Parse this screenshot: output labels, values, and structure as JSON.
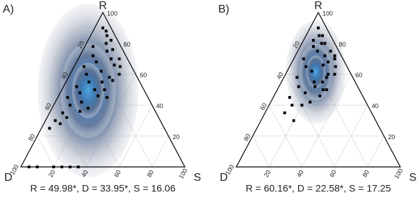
{
  "chart_data": [
    {
      "type": "ternary",
      "panel": "A)",
      "r_label": "R",
      "d_label": "D",
      "s_label": "S",
      "caption": "R = 49.98*, D = 33.95*, S = 16.06",
      "lim": [
        0,
        100
      ],
      "ticks": [
        20,
        40,
        60,
        80,
        100
      ],
      "grid": true,
      "color": "#000000",
      "r": [
        85,
        80,
        78,
        75,
        72,
        70,
        68,
        65,
        62,
        60,
        58,
        55,
        52,
        50,
        48,
        45,
        42,
        40,
        38,
        35,
        32,
        30,
        28,
        25,
        70,
        65,
        60,
        55,
        50,
        45,
        90,
        88,
        82,
        76,
        66,
        56,
        46,
        36,
        0,
        0,
        0,
        0,
        0,
        0
      ],
      "d": [
        5,
        8,
        17,
        10,
        20,
        10,
        20,
        29,
        20,
        30,
        17,
        31,
        40,
        30,
        40,
        49,
        42,
        50,
        40,
        57,
        56,
        64,
        62,
        70,
        5,
        7,
        10,
        23,
        24,
        25,
        5,
        4,
        4,
        6,
        10,
        16,
        30,
        46,
        95,
        90,
        80,
        70,
        65,
        75
      ],
      "s": [
        10,
        12,
        5,
        15,
        8,
        20,
        12,
        6,
        18,
        10,
        25,
        14,
        8,
        20,
        12,
        6,
        16,
        10,
        22,
        8,
        12,
        6,
        10,
        5,
        25,
        28,
        30,
        22,
        26,
        30,
        5,
        8,
        14,
        18,
        24,
        28,
        24,
        18,
        5,
        10,
        20,
        30,
        35,
        25
      ]
    },
    {
      "type": "ternary",
      "panel": "B)",
      "r_label": "R",
      "d_label": "D",
      "s_label": "S",
      "caption": "R = 60.16*, D = 22.58*, S = 17.25",
      "lim": [
        0,
        100
      ],
      "ticks": [
        20,
        40,
        60,
        80,
        100
      ],
      "grid": true,
      "color": "#000000",
      "r": [
        90,
        85,
        82,
        80,
        78,
        75,
        72,
        70,
        68,
        65,
        62,
        60,
        58,
        55,
        52,
        50,
        48,
        45,
        42,
        40,
        75,
        70,
        65,
        60,
        55,
        50,
        85,
        80,
        72,
        66,
        58,
        52,
        46,
        40,
        35,
        30
      ],
      "d": [
        5,
        5,
        12,
        6,
        14,
        13,
        10,
        24,
        10,
        25,
        23,
        14,
        34,
        25,
        36,
        22,
        34,
        45,
        34,
        46,
        5,
        5,
        7,
        10,
        20,
        20,
        7,
        8,
        4,
        14,
        16,
        26,
        26,
        40,
        53,
        50
      ],
      "s": [
        5,
        10,
        6,
        14,
        8,
        12,
        18,
        6,
        22,
        10,
        15,
        26,
        8,
        20,
        12,
        28,
        18,
        10,
        24,
        14,
        20,
        25,
        28,
        30,
        25,
        30,
        8,
        12,
        24,
        20,
        26,
        22,
        28,
        20,
        12,
        20
      ]
    }
  ]
}
